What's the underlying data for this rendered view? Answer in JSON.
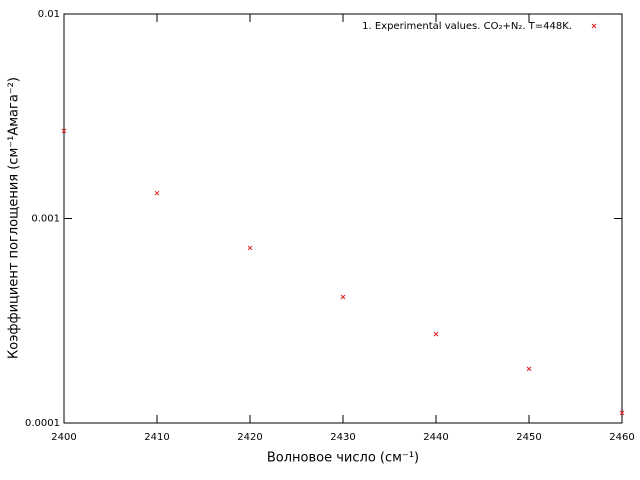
{
  "chart_data": {
    "type": "scatter",
    "xlabel": "Волновое число (см⁻¹)",
    "ylabel": "Коэффициент поглощения (см⁻¹Амага⁻²)",
    "series": [
      {
        "name": "1. Experimental values. CO₂+N₂. T=448K.",
        "color": "#e02020",
        "x": [
          2400,
          2410,
          2420,
          2430,
          2440,
          2450,
          2460
        ],
        "values": [
          0.00268,
          0.00133,
          0.000718,
          0.000413,
          0.000272,
          0.000184,
          0.000112
        ]
      }
    ],
    "xlim": [
      2400,
      2460
    ],
    "xticks": [
      2400,
      2410,
      2420,
      2430,
      2440,
      2450,
      2460
    ],
    "ylim": [
      0.0001,
      0.01
    ],
    "yticks": [
      0.0001,
      0.001,
      0.01
    ],
    "ylog": true,
    "grid": false,
    "legend": "top-right"
  }
}
